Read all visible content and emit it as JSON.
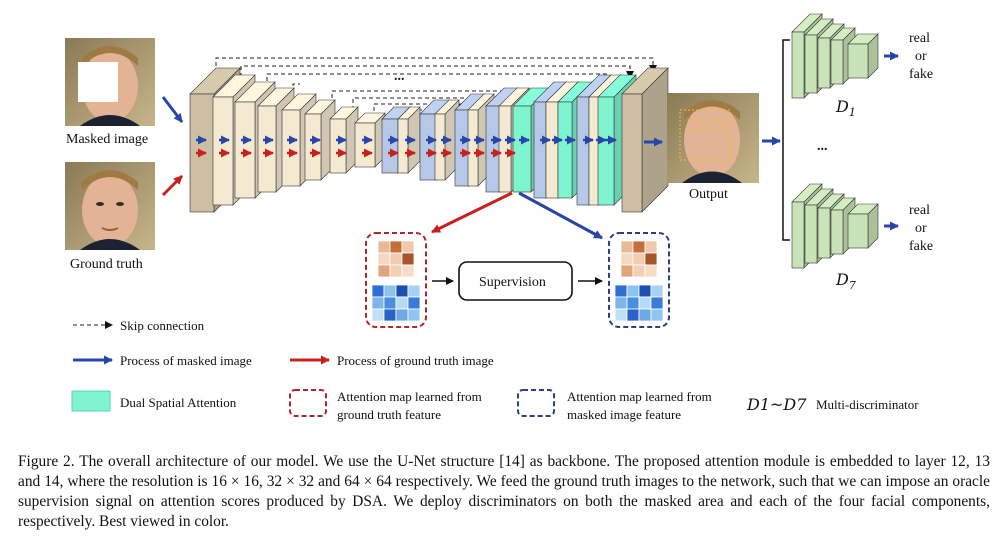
{
  "labels": {
    "masked_image": "Masked image",
    "ground_truth": "Ground truth",
    "output": "Output",
    "supervision": "Supervision",
    "ellipsis_top": "...",
    "ellipsis_disc": "...",
    "d1": "D",
    "d1_sub": "1",
    "d7": "D",
    "d7_sub": "7",
    "real_or_fake": [
      "real",
      "or",
      "fake"
    ]
  },
  "legend": {
    "skip_connection": "Skip connection",
    "process_masked": "Process of masked image",
    "process_gt": "Process of ground truth image",
    "dsa": "Dual Spatial Attention",
    "attn_gt": [
      "Attention map learned from",
      "ground truth feature"
    ],
    "attn_masked": [
      "Attention map learned from",
      "masked image feature"
    ],
    "multi_disc_symbol": "D1~D7",
    "multi_disc": "Multi-discriminator"
  },
  "colors": {
    "masked_arrow": "#2845a8",
    "gt_arrow": "#c8201e",
    "dsa_fill": "#7ff5cf",
    "block_tan": "#cdbfa4",
    "block_cream": "#f4ead2",
    "block_blue": "#b6c8e8",
    "disc_green": "#c9e3b8",
    "attn_gt_border": "#b2262e",
    "attn_masked_border": "#2b3f86"
  },
  "caption": "Figure 2. The overall architecture of our model. We use the U-Net structure [14] as backbone. The proposed attention module is embedded to layer 12, 13 and 14, where the resolution is 16 × 16, 32 × 32 and 64 × 64 respectively. We feed the ground truth images to the network, such that we can impose an oracle supervision signal on attention scores produced by DSA. We deploy discriminators on both the masked area and each of the four facial components, respectively. Best viewed in color."
}
